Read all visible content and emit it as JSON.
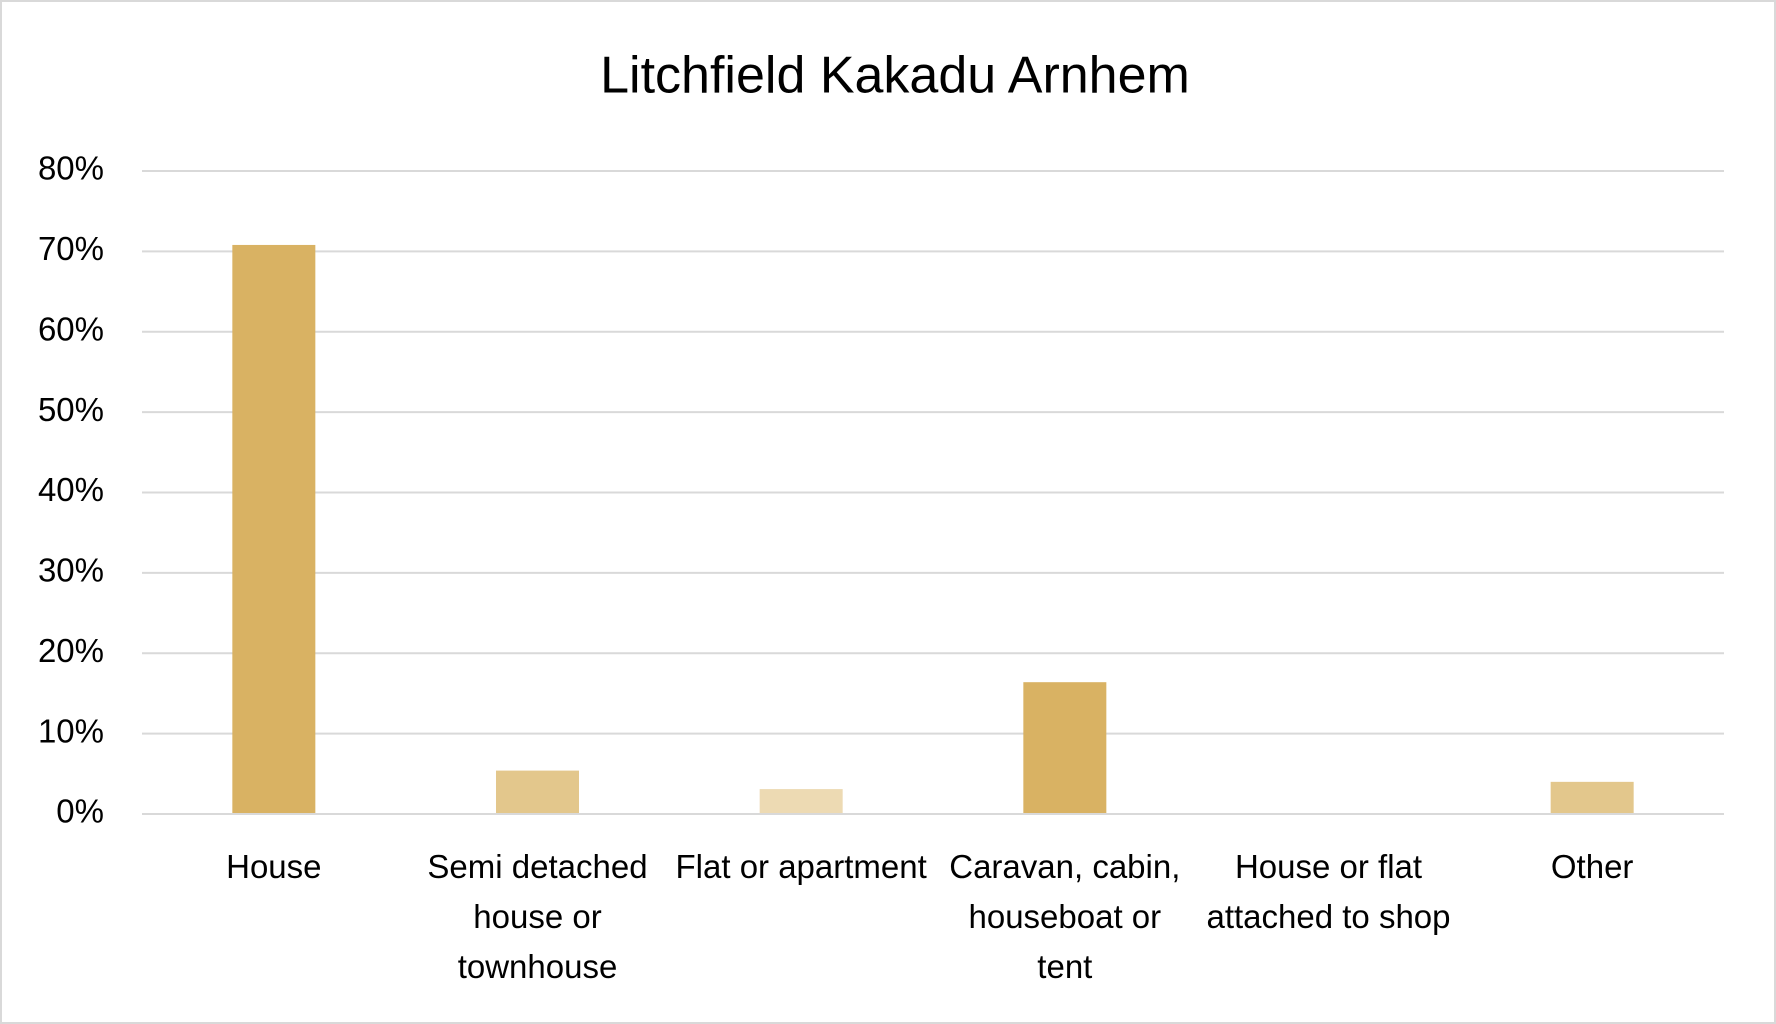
{
  "chart_data": {
    "type": "bar",
    "title": "Litchfield Kakadu Arnhem",
    "categories": [
      "House",
      "Semi detached house or townhouse",
      "Flat or apartment",
      "Caravan, cabin, houseboat or tent",
      "House or flat attached to shop",
      "Other"
    ],
    "values": [
      70.8,
      5.4,
      3.1,
      16.4,
      0,
      4.0
    ],
    "colors": [
      "#d9b263",
      "#e3c78c",
      "#eddab3",
      "#d9b263",
      "#e3c78c",
      "#e3c78c"
    ],
    "ylim": [
      0,
      80
    ],
    "yticks": [
      {
        "value": 0,
        "label": "0%"
      },
      {
        "value": 10,
        "label": "10%"
      },
      {
        "value": 20,
        "label": "20%"
      },
      {
        "value": 30,
        "label": "30%"
      },
      {
        "value": 40,
        "label": "40%"
      },
      {
        "value": 50,
        "label": "50%"
      },
      {
        "value": 60,
        "label": "60%"
      },
      {
        "value": 70,
        "label": "70%"
      },
      {
        "value": 80,
        "label": "80%"
      }
    ],
    "grid": true
  }
}
